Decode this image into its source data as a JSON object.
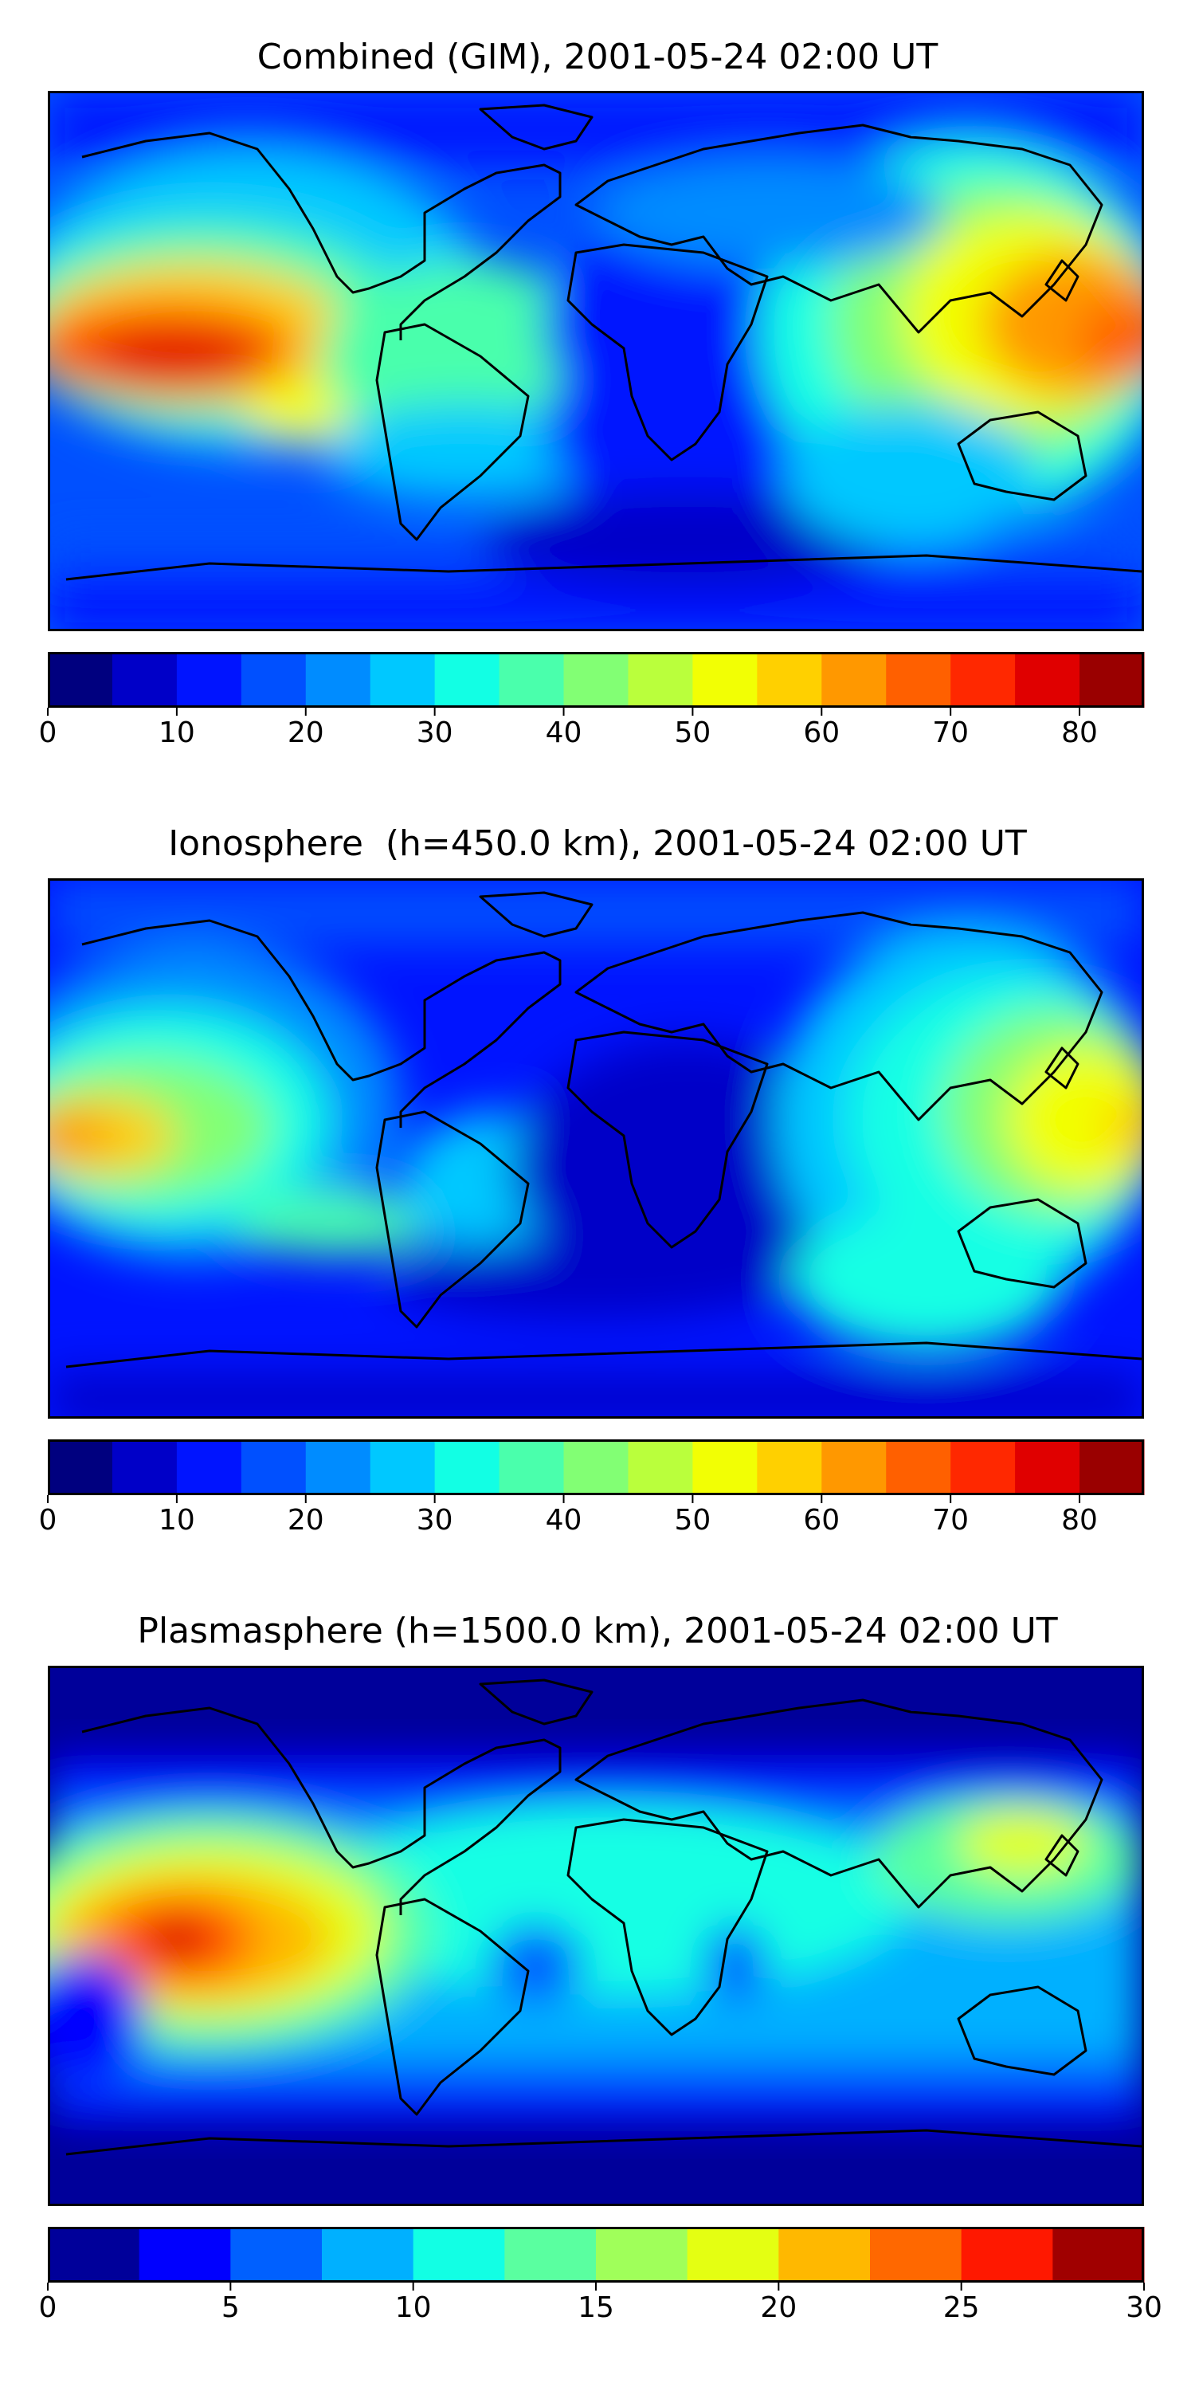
{
  "panels": [
    {
      "title": "Combined (GIM), 2001-05-24 02:00 UT",
      "colorbar": {
        "min": 0,
        "max": 85,
        "step": 5,
        "ticks": [
          "0",
          "10",
          "20",
          "30",
          "40",
          "50",
          "60",
          "70",
          "80"
        ],
        "tick_values": [
          0,
          10,
          20,
          30,
          40,
          50,
          60,
          70,
          80
        ],
        "colors": [
          "#00007f",
          "#0000c8",
          "#0014ff",
          "#0050ff",
          "#008cff",
          "#00c8ff",
          "#12ffe4",
          "#4affac",
          "#82ff74",
          "#baff3c",
          "#f2ff04",
          "#ffd000",
          "#ff9800",
          "#ff6000",
          "#ff2800",
          "#e00000",
          "#9a0000"
        ]
      }
    },
    {
      "title": "Ionosphere  (h=450.0 km), 2001-05-24 02:00 UT",
      "colorbar": {
        "min": 0,
        "max": 85,
        "step": 5,
        "ticks": [
          "0",
          "10",
          "20",
          "30",
          "40",
          "50",
          "60",
          "70",
          "80"
        ],
        "tick_values": [
          0,
          10,
          20,
          30,
          40,
          50,
          60,
          70,
          80
        ],
        "colors": [
          "#00007f",
          "#0000c8",
          "#0014ff",
          "#0050ff",
          "#008cff",
          "#00c8ff",
          "#12ffe4",
          "#4affac",
          "#82ff74",
          "#baff3c",
          "#f2ff04",
          "#ffd000",
          "#ff9800",
          "#ff6000",
          "#ff2800",
          "#e00000",
          "#9a0000"
        ]
      }
    },
    {
      "title": "Plasmasphere (h=1500.0 km), 2001-05-24 02:00 UT",
      "colorbar": {
        "min": 0,
        "max": 30,
        "step": 2.5,
        "ticks": [
          "0",
          "5",
          "10",
          "15",
          "20",
          "25",
          "30"
        ],
        "tick_values": [
          0,
          5,
          10,
          15,
          20,
          25,
          30
        ],
        "colors": [
          "#00009a",
          "#0000ff",
          "#0060ff",
          "#00b0ff",
          "#12ffe4",
          "#5affa0",
          "#a0ff5a",
          "#e4ff12",
          "#ffb800",
          "#ff6800",
          "#ff1800",
          "#a00000"
        ]
      }
    }
  ]
}
